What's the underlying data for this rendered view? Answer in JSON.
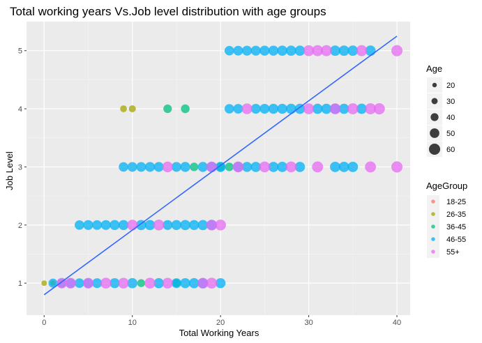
{
  "chart_data": {
    "type": "scatter",
    "title": "Total working years Vs.Job level distribution with age groups",
    "xlabel": "Total Working Years",
    "ylabel": "Job Level",
    "xlim": [
      -2,
      41.5
    ],
    "ylim": [
      0.45,
      5.5
    ],
    "x_ticks": [
      0,
      10,
      20,
      30,
      40
    ],
    "y_ticks": [
      1,
      2,
      3,
      4,
      5
    ],
    "grid": true,
    "background": "#ebebeb",
    "trend_line": {
      "x": [
        0,
        40
      ],
      "y": [
        0.8,
        5.25
      ],
      "color": "#3366ff"
    },
    "size_legend": {
      "title": "Age",
      "entries": [
        {
          "label": "20",
          "value": 20
        },
        {
          "label": "30",
          "value": 30
        },
        {
          "label": "40",
          "value": 40
        },
        {
          "label": "50",
          "value": 50
        },
        {
          "label": "60",
          "value": 60
        }
      ]
    },
    "color_legend": {
      "title": "AgeGroup",
      "entries": [
        {
          "label": "18-25",
          "color": "#f8766d"
        },
        {
          "label": "26-35",
          "color": "#a3a500"
        },
        {
          "label": "36-45",
          "color": "#00bf7d"
        },
        {
          "label": "46-55",
          "color": "#00b0f6"
        },
        {
          "label": "55+",
          "color": "#e76bf3"
        }
      ]
    },
    "series": [
      {
        "name": "26-35",
        "points": [
          [
            0,
            1,
            26
          ],
          [
            9,
            4,
            34
          ],
          [
            10,
            4,
            35
          ],
          [
            1,
            1,
            27
          ]
        ]
      },
      {
        "name": "36-45",
        "points": [
          [
            11,
            1,
            40
          ],
          [
            15,
            1,
            42
          ],
          [
            14,
            4,
            44
          ],
          [
            16,
            4,
            45
          ],
          [
            17,
            3,
            44
          ],
          [
            20,
            3,
            45
          ],
          [
            21,
            3,
            44
          ]
        ]
      },
      {
        "name": "46-55",
        "points": [
          [
            1,
            1,
            47
          ],
          [
            2,
            1,
            48
          ],
          [
            3,
            1,
            50
          ],
          [
            4,
            1,
            50
          ],
          [
            5,
            1,
            51
          ],
          [
            6,
            1,
            52
          ],
          [
            8,
            1,
            53
          ],
          [
            10,
            1,
            54
          ],
          [
            13,
            1,
            54
          ],
          [
            15,
            1,
            52
          ],
          [
            16,
            1,
            53
          ],
          [
            17,
            1,
            54
          ],
          [
            18,
            1,
            54
          ],
          [
            20,
            1,
            53
          ],
          [
            4,
            2,
            50
          ],
          [
            5,
            2,
            52
          ],
          [
            6,
            2,
            51
          ],
          [
            7,
            2,
            52
          ],
          [
            8,
            2,
            53
          ],
          [
            9,
            2,
            53
          ],
          [
            11,
            2,
            54
          ],
          [
            12,
            2,
            54
          ],
          [
            14,
            2,
            52
          ],
          [
            15,
            2,
            53
          ],
          [
            16,
            2,
            54
          ],
          [
            17,
            2,
            53
          ],
          [
            18,
            2,
            54
          ],
          [
            19,
            2,
            54
          ],
          [
            9,
            3,
            50
          ],
          [
            10,
            3,
            51
          ],
          [
            11,
            3,
            51
          ],
          [
            12,
            3,
            52
          ],
          [
            13,
            3,
            52
          ],
          [
            15,
            3,
            52
          ],
          [
            16,
            3,
            53
          ],
          [
            18,
            3,
            53
          ],
          [
            19,
            3,
            54
          ],
          [
            20,
            3,
            54
          ],
          [
            22,
            3,
            53
          ],
          [
            23,
            3,
            53
          ],
          [
            24,
            3,
            54
          ],
          [
            26,
            3,
            54
          ],
          [
            27,
            3,
            55
          ],
          [
            29,
            3,
            54
          ],
          [
            33,
            3,
            55
          ],
          [
            34,
            3,
            55
          ],
          [
            35,
            3,
            55
          ],
          [
            21,
            4,
            50
          ],
          [
            22,
            4,
            51
          ],
          [
            24,
            4,
            52
          ],
          [
            25,
            4,
            52
          ],
          [
            26,
            4,
            53
          ],
          [
            27,
            4,
            53
          ],
          [
            28,
            4,
            54
          ],
          [
            29,
            4,
            54
          ],
          [
            31,
            4,
            54
          ],
          [
            32,
            4,
            54
          ],
          [
            33,
            4,
            55
          ],
          [
            34,
            4,
            54
          ],
          [
            36,
            4,
            55
          ],
          [
            21,
            5,
            50
          ],
          [
            22,
            5,
            51
          ],
          [
            23,
            5,
            52
          ],
          [
            24,
            5,
            52
          ],
          [
            25,
            5,
            53
          ],
          [
            26,
            5,
            53
          ],
          [
            27,
            5,
            54
          ],
          [
            28,
            5,
            54
          ],
          [
            29,
            5,
            54
          ],
          [
            33,
            5,
            55
          ],
          [
            34,
            5,
            55
          ],
          [
            35,
            5,
            55
          ],
          [
            37,
            5,
            55
          ]
        ]
      },
      {
        "name": "55+",
        "points": [
          [
            2,
            1,
            56
          ],
          [
            3,
            1,
            57
          ],
          [
            5,
            1,
            57
          ],
          [
            7,
            1,
            58
          ],
          [
            9,
            1,
            57
          ],
          [
            12,
            1,
            58
          ],
          [
            14,
            1,
            57
          ],
          [
            18,
            1,
            57
          ],
          [
            19,
            1,
            58
          ],
          [
            10,
            2,
            57
          ],
          [
            13,
            2,
            58
          ],
          [
            19,
            2,
            57
          ],
          [
            20,
            2,
            58
          ],
          [
            14,
            3,
            57
          ],
          [
            19,
            3,
            57
          ],
          [
            22,
            3,
            58
          ],
          [
            25,
            3,
            58
          ],
          [
            28,
            3,
            58
          ],
          [
            31,
            3,
            59
          ],
          [
            37,
            3,
            59
          ],
          [
            40,
            3,
            60
          ],
          [
            23,
            4,
            57
          ],
          [
            30,
            4,
            58
          ],
          [
            33,
            4,
            58
          ],
          [
            35,
            4,
            59
          ],
          [
            37,
            4,
            59
          ],
          [
            38,
            4,
            60
          ],
          [
            30,
            5,
            58
          ],
          [
            31,
            5,
            59
          ],
          [
            32,
            5,
            59
          ],
          [
            36,
            5,
            59
          ],
          [
            40,
            5,
            60
          ]
        ]
      }
    ]
  }
}
